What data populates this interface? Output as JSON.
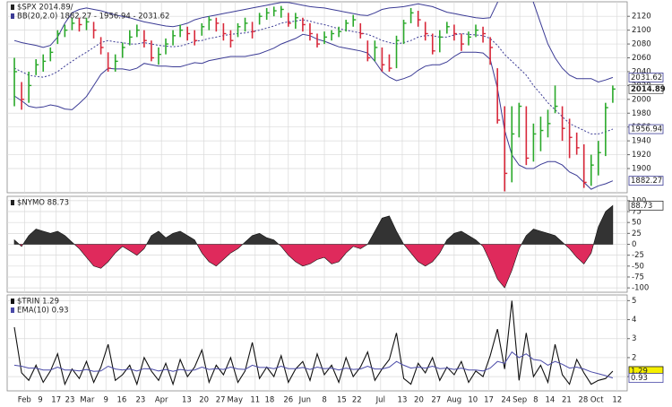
{
  "chart_data": [
    {
      "type": "ohlc",
      "label": "$SPX 2014.89/",
      "up_color": "#2aa92a",
      "down_color": "#d8283a",
      "xlim": [
        -1,
        85
      ],
      "ylim": [
        1865,
        2141
      ],
      "yticks": [
        1900,
        1920,
        1940,
        1960,
        1980,
        2000,
        2020,
        2040,
        2060,
        2080,
        2100,
        2120
      ],
      "high": [
        2060,
        2025,
        2040,
        2058,
        2065,
        2075,
        2100,
        2108,
        2118,
        2118,
        2118,
        2112,
        2090,
        2068,
        2065,
        2082,
        2100,
        2108,
        2100,
        2085,
        2075,
        2088,
        2100,
        2108,
        2105,
        2100,
        2110,
        2120,
        2118,
        2110,
        2100,
        2110,
        2118,
        2112,
        2125,
        2132,
        2134,
        2135,
        2125,
        2125,
        2118,
        2110,
        2095,
        2098,
        2100,
        2105,
        2115,
        2122,
        2110,
        2085,
        2085,
        2075,
        2065,
        2092,
        2115,
        2132,
        2128,
        2112,
        2095,
        2100,
        2112,
        2108,
        2095,
        2098,
        2108,
        2105,
        2090,
        2045,
        1990,
        1990,
        1995,
        1990,
        1965,
        1975,
        1985,
        2020,
        1990,
        1972,
        1952,
        1935,
        1920,
        1940,
        1995,
        2020
      ],
      "low": [
        1990,
        1985,
        1995,
        2035,
        2040,
        2055,
        2080,
        2090,
        2100,
        2098,
        2100,
        2088,
        2065,
        2040,
        2040,
        2060,
        2078,
        2090,
        2075,
        2055,
        2050,
        2065,
        2078,
        2090,
        2085,
        2078,
        2092,
        2100,
        2098,
        2085,
        2075,
        2090,
        2098,
        2088,
        2108,
        2115,
        2120,
        2118,
        2105,
        2102,
        2098,
        2085,
        2075,
        2080,
        2085,
        2090,
        2098,
        2105,
        2088,
        2055,
        2055,
        2040,
        2040,
        2045,
        2080,
        2110,
        2105,
        2085,
        2065,
        2068,
        2095,
        2085,
        2070,
        2078,
        2090,
        2082,
        2050,
        1965,
        1867,
        1880,
        1945,
        1905,
        1910,
        1925,
        1945,
        1980,
        1940,
        1915,
        1920,
        1872,
        1875,
        1890,
        1918,
        1995
      ],
      "close": [
        2040,
        2000,
        2020,
        2050,
        2055,
        2068,
        2095,
        2100,
        2110,
        2108,
        2112,
        2100,
        2075,
        2045,
        2055,
        2075,
        2090,
        2100,
        2085,
        2060,
        2065,
        2080,
        2092,
        2100,
        2095,
        2085,
        2105,
        2115,
        2110,
        2095,
        2085,
        2105,
        2110,
        2098,
        2120,
        2125,
        2128,
        2130,
        2110,
        2118,
        2108,
        2095,
        2080,
        2090,
        2095,
        2098,
        2110,
        2115,
        2095,
        2060,
        2075,
        2050,
        2045,
        2085,
        2110,
        2125,
        2115,
        2095,
        2070,
        2090,
        2105,
        2095,
        2080,
        2090,
        2100,
        2095,
        2075,
        1970,
        1893,
        1950,
        1990,
        1915,
        1950,
        1955,
        1965,
        1990,
        1958,
        1945,
        1930,
        1880,
        1905,
        1923,
        1988,
        2014.89
      ],
      "bands": {
        "label": "BB(20,2.0) 1882.27 - 1956.94 - 2031.62",
        "color": "#3b3b95",
        "upper": [
          2085,
          2082,
          2080,
          2078,
          2075,
          2078,
          2090,
          2110,
          2125,
          2130,
          2132,
          2130,
          2128,
          2125,
          2122,
          2120,
          2118,
          2115,
          2112,
          2110,
          2108,
          2106,
          2105,
          2107,
          2110,
          2115,
          2118,
          2120,
          2122,
          2124,
          2126,
          2128,
          2130,
          2132,
          2134,
          2136,
          2138,
          2140,
          2140,
          2138,
          2136,
          2134,
          2133,
          2132,
          2130,
          2128,
          2126,
          2124,
          2122,
          2121,
          2125,
          2130,
          2132,
          2133,
          2134,
          2136,
          2138,
          2136,
          2134,
          2130,
          2126,
          2124,
          2122,
          2120,
          2118,
          2117,
          2118,
          2140,
          2175,
          2190,
          2185,
          2170,
          2140,
          2110,
          2080,
          2060,
          2045,
          2035,
          2030,
          2030,
          2030,
          2025,
          2028,
          2031.62
        ],
        "middle": [
          2045,
          2040,
          2035,
          2033,
          2032,
          2035,
          2040,
          2048,
          2055,
          2062,
          2068,
          2075,
          2082,
          2085,
          2083,
          2082,
          2080,
          2080,
          2082,
          2080,
          2078,
          2077,
          2076,
          2077,
          2080,
          2084,
          2085,
          2088,
          2090,
          2092,
          2094,
          2095,
          2096,
          2098,
          2100,
          2103,
          2106,
          2110,
          2112,
          2113,
          2115,
          2113,
          2110,
          2108,
          2105,
          2102,
          2100,
          2098,
          2096,
          2094,
          2090,
          2085,
          2082,
          2080,
          2082,
          2085,
          2090,
          2092,
          2092,
          2090,
          2090,
          2093,
          2095,
          2094,
          2093,
          2092,
          2088,
          2078,
          2065,
          2055,
          2045,
          2035,
          2020,
          2008,
          1995,
          1985,
          1975,
          1965,
          1960,
          1955,
          1950,
          1950,
          1953,
          1956.94
        ],
        "lower": [
          2005,
          1998,
          1990,
          1988,
          1989,
          1992,
          1990,
          1986,
          1985,
          1994,
          2004,
          2020,
          2036,
          2045,
          2044,
          2044,
          2042,
          2045,
          2052,
          2050,
          2048,
          2048,
          2047,
          2047,
          2050,
          2053,
          2052,
          2056,
          2058,
          2060,
          2062,
          2062,
          2062,
          2064,
          2066,
          2070,
          2074,
          2080,
          2084,
          2088,
          2094,
          2092,
          2087,
          2084,
          2080,
          2076,
          2074,
          2072,
          2070,
          2067,
          2055,
          2040,
          2032,
          2027,
          2030,
          2034,
          2042,
          2048,
          2050,
          2050,
          2054,
          2062,
          2068,
          2068,
          2068,
          2067,
          2058,
          2016,
          1955,
          1920,
          1905,
          1900,
          1900,
          1906,
          1910,
          1910,
          1905,
          1895,
          1890,
          1880,
          1870,
          1875,
          1878,
          1882.27
        ]
      }
    },
    {
      "type": "area",
      "label": "$NYMO 88.73",
      "pos_color": "#333333",
      "neg_color": "#df2a5c",
      "xlim": [
        -1,
        85
      ],
      "ylim": [
        -110,
        110
      ],
      "yticks": [
        -100,
        -75,
        -50,
        -25,
        0,
        25,
        50,
        75,
        100
      ],
      "values": [
        10,
        -5,
        20,
        35,
        30,
        25,
        30,
        20,
        5,
        -10,
        -30,
        -50,
        -55,
        -40,
        -20,
        -5,
        -15,
        -25,
        -10,
        20,
        30,
        15,
        25,
        30,
        20,
        10,
        -20,
        -40,
        -50,
        -35,
        -20,
        -10,
        5,
        20,
        25,
        15,
        10,
        -5,
        -25,
        -40,
        -50,
        -45,
        -35,
        -30,
        -45,
        -40,
        -20,
        -5,
        -10,
        0,
        30,
        60,
        65,
        30,
        0,
        -20,
        -40,
        -50,
        -40,
        -20,
        10,
        25,
        30,
        20,
        10,
        -5,
        -40,
        -80,
        -100,
        -60,
        -10,
        20,
        35,
        30,
        25,
        20,
        5,
        -10,
        -30,
        -45,
        -20,
        40,
        75,
        88.73
      ]
    },
    {
      "type": "line",
      "highlight": "#f5ef00",
      "xlim": [
        -1,
        85
      ],
      "ylim": [
        0.25,
        5.3
      ],
      "yticks": [
        1,
        2,
        3,
        4,
        5
      ],
      "xticks": [
        {
          "value": 1.4,
          "label": "Feb"
        },
        3.6,
        5.8,
        7.7,
        {
          "value": 10.1,
          "label": "Mar"
        },
        12.7,
        14.9,
        17.5,
        {
          "value": 20.4,
          "label": "Apr"
        },
        23.9,
        26.3,
        28.6,
        {
          "value": 30.6,
          "label": "May"
        },
        33.4,
        35.4,
        38.0,
        {
          "value": 40.3,
          "label": "Jun"
        },
        43.0,
        45.4,
        47.5,
        {
          "value": 50.8,
          "label": "Jul"
        },
        53.8,
        56.1,
        58.5,
        {
          "value": 61.0,
          "label": "Aug"
        },
        63.6,
        65.8,
        68.2,
        {
          "value": 70.1,
          "label": "Sep"
        },
        72.3,
        74.3,
        76.6,
        78.9,
        {
          "value": 80.8,
          "label": "Oct"
        },
        83.6
      ],
      "xtick_labels": [
        "Feb",
        "9",
        "17",
        "23",
        "Mar",
        "9",
        "16",
        "23",
        "Apr",
        "13",
        "20",
        "27",
        "May",
        "11",
        "18",
        "26",
        "Jun",
        "8",
        "15",
        "22",
        "Jul",
        "13",
        "20",
        "27",
        "Aug",
        "10",
        "17",
        "24",
        "Sep",
        "8",
        "14",
        "21",
        "28",
        "Oct",
        "12"
      ],
      "series": [
        {
          "name": "$TRIN 1.29",
          "color": "#111111",
          "values": [
            3.6,
            1.2,
            0.8,
            1.6,
            0.7,
            1.3,
            2.2,
            0.6,
            1.4,
            0.9,
            1.8,
            0.7,
            1.5,
            2.7,
            0.8,
            1.1,
            1.6,
            0.6,
            2.0,
            1.3,
            0.8,
            1.7,
            0.6,
            1.9,
            1.0,
            1.5,
            2.4,
            0.7,
            1.6,
            1.1,
            2.0,
            0.7,
            1.3,
            2.8,
            0.9,
            1.5,
            1.0,
            2.1,
            0.7,
            1.4,
            1.8,
            0.8,
            2.2,
            1.1,
            1.6,
            0.7,
            2.0,
            1.0,
            1.5,
            2.3,
            0.8,
            1.4,
            1.9,
            3.3,
            0.9,
            0.6,
            1.7,
            1.2,
            2.0,
            0.8,
            1.5,
            1.1,
            1.8,
            0.7,
            1.3,
            1.0,
            2.1,
            3.5,
            1.4,
            5.0,
            0.8,
            3.3,
            1.0,
            1.6,
            0.7,
            2.7,
            1.1,
            0.6,
            1.9,
            1.2,
            0.6,
            0.8,
            0.9,
            1.29
          ]
        },
        {
          "name": "EMA(10) 0.93",
          "color": "#4a4aa8",
          "values": [
            1.6,
            1.55,
            1.45,
            1.45,
            1.35,
            1.35,
            1.5,
            1.35,
            1.35,
            1.3,
            1.38,
            1.28,
            1.3,
            1.55,
            1.4,
            1.35,
            1.4,
            1.3,
            1.42,
            1.4,
            1.3,
            1.38,
            1.28,
            1.38,
            1.32,
            1.35,
            1.5,
            1.38,
            1.42,
            1.38,
            1.5,
            1.4,
            1.38,
            1.6,
            1.48,
            1.48,
            1.42,
            1.55,
            1.42,
            1.42,
            1.48,
            1.38,
            1.5,
            1.42,
            1.45,
            1.35,
            1.45,
            1.38,
            1.4,
            1.55,
            1.4,
            1.4,
            1.5,
            1.8,
            1.6,
            1.45,
            1.5,
            1.45,
            1.55,
            1.42,
            1.45,
            1.38,
            1.45,
            1.35,
            1.35,
            1.3,
            1.45,
            1.8,
            1.7,
            2.3,
            2.0,
            2.2,
            1.9,
            1.85,
            1.6,
            1.8,
            1.65,
            1.45,
            1.5,
            1.4,
            1.25,
            1.15,
            1.05,
            0.93
          ]
        }
      ]
    }
  ]
}
